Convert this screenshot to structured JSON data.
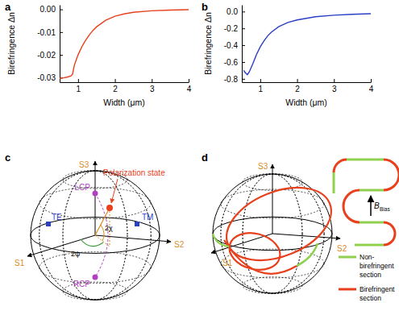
{
  "chart_data": [
    {
      "type": "line",
      "title": "a",
      "x_label": "Width (μm)",
      "y_label": "Birefringence Δn",
      "x": [
        0.5,
        0.6,
        0.7,
        0.8,
        0.85,
        0.88,
        0.9,
        0.95,
        1.0,
        1.1,
        1.2,
        1.3,
        1.4,
        1.5,
        1.75,
        2.0,
        2.25,
        2.5,
        3.0,
        3.5,
        4.0
      ],
      "series": [
        {
          "color": "#e8401c",
          "values": [
            -0.0303,
            -0.0301,
            -0.0298,
            -0.0293,
            -0.0285,
            -0.026,
            -0.0245,
            -0.0222,
            -0.02,
            -0.0165,
            -0.0137,
            -0.0113,
            -0.0093,
            -0.0077,
            -0.0048,
            -0.003,
            -0.002,
            -0.0013,
            -0.0006,
            -0.0003,
            -0.0001
          ]
        }
      ],
      "xlim": [
        0.5,
        4
      ],
      "xticks": [
        1,
        2,
        3,
        4
      ],
      "ylim": [
        -0.032,
        0.002
      ],
      "yticks": [
        {
          "value": 0,
          "label": "0.00"
        },
        -0.01,
        -0.02,
        -0.03
      ]
    },
    {
      "type": "line",
      "title": "b",
      "x_label": "Width (μm)",
      "y_label": "Birefringence Δn",
      "x": [
        0.55,
        0.6,
        0.65,
        0.7,
        0.8,
        0.9,
        1.0,
        1.1,
        1.2,
        1.3,
        1.5,
        1.75,
        2.0,
        2.5,
        3.0,
        3.5,
        4.0
      ],
      "series": [
        {
          "color": "#2a3fc4",
          "values": [
            -0.7,
            -0.73,
            -0.75,
            -0.72,
            -0.62,
            -0.51,
            -0.42,
            -0.35,
            -0.29,
            -0.245,
            -0.18,
            -0.13,
            -0.1,
            -0.062,
            -0.043,
            -0.032,
            -0.025
          ]
        }
      ],
      "xlim": [
        0.5,
        4
      ],
      "xticks": [
        1,
        2,
        3,
        4
      ],
      "ylim": [
        -0.84,
        0.08
      ],
      "yticks": [
        {
          "value": 0,
          "label": "0.0"
        },
        -0.2,
        -0.4,
        -0.6,
        -0.8
      ]
    }
  ],
  "diagram_c": {
    "label": "c",
    "axes": [
      "S1",
      "S2",
      "S3"
    ],
    "points": [
      "TE",
      "TM",
      "LCP",
      "RCP"
    ],
    "state": "Polarization state",
    "angles": [
      "2χ",
      "2ψ"
    ]
  },
  "diagram_d": {
    "label": "d",
    "axes": [
      "S1",
      "S2",
      "S3"
    ],
    "field": {
      "symbol": "B",
      "subscript": "Bias"
    },
    "legend": [
      {
        "label": [
          "Non-",
          "birefringent",
          "section"
        ]
      },
      {
        "label": [
          "Birefringent",
          "section"
        ]
      }
    ]
  }
}
